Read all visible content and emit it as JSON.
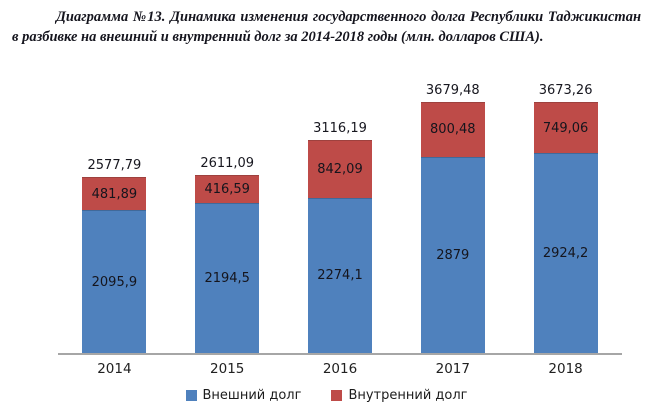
{
  "title": "Диаграмма №13. Динамика изменения государственного долга Республики Таджикистан в разбивке на внешний и внутренний долг за 2014-2018 годы (млн. долларов США).",
  "colors": {
    "external_debt": "#4F81BD",
    "internal_debt": "#BE4B48",
    "axis_line": "#A6A6A6",
    "title_text": "#15151E",
    "label_text": "#17171F"
  },
  "chart_data": {
    "type": "bar",
    "stacked": true,
    "title": "Диаграмма №13. Динамика изменения государственного долга Республики Таджикистан в разбивке на внешний и внутренний долг за 2014-2018 годы (млн. долларов США).",
    "categories": [
      "2014",
      "2015",
      "2016",
      "2017",
      "2018"
    ],
    "series": [
      {
        "name": "Внешний долг",
        "color": "#4F81BD",
        "values": [
          2095.9,
          2194.5,
          2274.1,
          2879,
          2924.2
        ],
        "labels": [
          "2095,9",
          "2194,5",
          "2274,1",
          "2879",
          "2924,2"
        ]
      },
      {
        "name": "Внутренний долг",
        "color": "#BE4B48",
        "values": [
          481.89,
          416.59,
          842.09,
          800.48,
          749.06
        ],
        "labels": [
          "481,89",
          "416,59",
          "842,09",
          "800,48",
          "749,06"
        ]
      }
    ],
    "totals": [
      2577.79,
      2611.09,
      3116.19,
      3679.48,
      3673.26
    ],
    "total_labels": [
      "2577,79",
      "2611,09",
      "3116,19",
      "3679,48",
      "3673,26"
    ],
    "xlabel": "",
    "ylabel": "",
    "ylim": [
      0,
      4000
    ],
    "grid": false,
    "y_axis_visible": false,
    "legend_position": "bottom"
  }
}
